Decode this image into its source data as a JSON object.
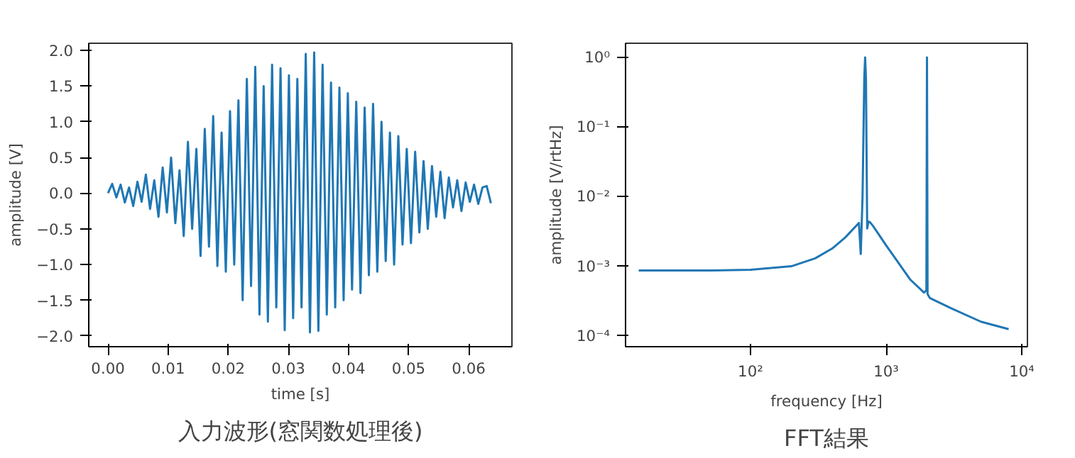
{
  "chart_data": [
    {
      "type": "line",
      "title": "入力波形(窓関数処理後)",
      "xlabel": "time [s]",
      "ylabel": "amplitude [V]",
      "x": [
        0.0,
        0.0007,
        0.0014,
        0.0021,
        0.0028,
        0.0035,
        0.0042,
        0.0049,
        0.0056,
        0.0063,
        0.007,
        0.0077,
        0.0084,
        0.0091,
        0.0098,
        0.0105,
        0.0112,
        0.0119,
        0.0126,
        0.0133,
        0.014,
        0.0147,
        0.0154,
        0.0161,
        0.0168,
        0.0175,
        0.0182,
        0.0189,
        0.0196,
        0.0203,
        0.021,
        0.0217,
        0.0224,
        0.0231,
        0.0238,
        0.0245,
        0.0252,
        0.0259,
        0.0266,
        0.0273,
        0.028,
        0.0287,
        0.0294,
        0.0301,
        0.0308,
        0.0315,
        0.0322,
        0.0329,
        0.0336,
        0.0343,
        0.035,
        0.0357,
        0.0364,
        0.0371,
        0.0378,
        0.0385,
        0.0392,
        0.0399,
        0.0406,
        0.0413,
        0.042,
        0.0427,
        0.0434,
        0.0441,
        0.0448,
        0.0455,
        0.0462,
        0.0469,
        0.0476,
        0.0483,
        0.049,
        0.0497,
        0.0504,
        0.0511,
        0.0518,
        0.0525,
        0.0532,
        0.0539,
        0.0546,
        0.0553,
        0.056,
        0.0567,
        0.0574,
        0.0581,
        0.0588,
        0.0595,
        0.0602,
        0.0609,
        0.0616,
        0.0623,
        0.063,
        0.0637
      ],
      "series": [
        {
          "color": "#1f77b4",
          "values": [
            0.0,
            0.13,
            -0.06,
            0.12,
            -0.13,
            0.08,
            -0.18,
            0.16,
            -0.12,
            0.26,
            -0.22,
            0.18,
            -0.33,
            0.36,
            -0.27,
            0.5,
            -0.42,
            0.32,
            -0.6,
            0.72,
            -0.5,
            0.62,
            -0.88,
            0.9,
            -0.75,
            1.08,
            -1.02,
            0.85,
            -1.1,
            1.15,
            -1.0,
            1.3,
            -1.5,
            1.6,
            -1.3,
            1.77,
            -1.7,
            1.5,
            -1.8,
            1.8,
            -1.6,
            1.75,
            -1.92,
            1.65,
            -1.75,
            1.6,
            -1.6,
            1.95,
            -1.95,
            1.97,
            -1.93,
            1.8,
            -1.7,
            1.55,
            -1.6,
            1.48,
            -1.5,
            1.4,
            -1.35,
            1.28,
            -1.4,
            1.2,
            -1.15,
            1.25,
            -1.1,
            1.0,
            -0.95,
            0.85,
            -1.0,
            0.8,
            -0.72,
            0.62,
            -0.7,
            0.58,
            -0.55,
            0.45,
            -0.5,
            0.38,
            -0.33,
            0.3,
            -0.35,
            0.22,
            -0.2,
            0.18,
            -0.25,
            0.15,
            -0.12,
            0.12,
            -0.15,
            0.08,
            0.1,
            -0.14
          ]
        }
      ],
      "xlim": [
        -0.0032,
        0.0672
      ],
      "ylim": [
        -2.15,
        2.1
      ],
      "xticks": [
        {
          "value": 0,
          "label": "0.00"
        },
        {
          "value": 0.01,
          "label": "0.01"
        },
        {
          "value": 0.02,
          "label": "0.02"
        },
        {
          "value": 0.03,
          "label": "0.03"
        },
        {
          "value": 0.04,
          "label": "0.04"
        },
        {
          "value": 0.05,
          "label": "0.05"
        },
        {
          "value": 0.06,
          "label": "0.06"
        }
      ],
      "yticks": [
        {
          "value": -2,
          "label": "−2.0"
        },
        {
          "value": -1.5,
          "label": "−1.5"
        },
        {
          "value": -1,
          "label": "−1.0"
        },
        {
          "value": -0.5,
          "label": "−0.5"
        },
        {
          "value": 0,
          "label": "0.0"
        },
        {
          "value": 0.5,
          "label": "0.5"
        },
        {
          "value": 1,
          "label": "1.0"
        },
        {
          "value": 1.5,
          "label": "1.5"
        },
        {
          "value": 2,
          "label": "2.0"
        }
      ],
      "grid": false
    },
    {
      "type": "line",
      "title": "FFT結果",
      "xlabel": "frequency [Hz]",
      "ylabel": "amplitude [V/rtHz]",
      "log": "xy",
      "x": [
        15,
        50,
        100,
        200,
        300,
        400,
        500,
        600,
        630,
        650,
        670,
        690,
        700,
        710,
        725,
        740,
        760,
        800,
        1000,
        1500,
        1900,
        1980,
        2000,
        2020,
        2100,
        3000,
        5000,
        8000
      ],
      "series": [
        {
          "color": "#1f77b4",
          "values": [
            0.00087,
            0.00087,
            0.00089,
            0.001,
            0.0013,
            0.0018,
            0.0026,
            0.0038,
            0.0042,
            0.0015,
            0.01,
            0.5,
            1.0,
            0.5,
            0.0035,
            0.0044,
            0.0043,
            0.0038,
            0.002,
            0.00065,
            0.00042,
            0.00045,
            1.0,
            0.0004,
            0.00035,
            0.00025,
            0.00016,
            0.000125
          ]
        }
      ],
      "xlim": [
        12,
        11000
      ],
      "ylim": [
        7e-05,
        1.6
      ],
      "xticks": [
        {
          "value": 100,
          "label": "10²"
        },
        {
          "value": 1000,
          "label": "10³"
        },
        {
          "value": 10000,
          "label": "10⁴"
        }
      ],
      "yticks": [
        {
          "value": 0.0001,
          "label": "10⁻⁴"
        },
        {
          "value": 0.001,
          "label": "10⁻³"
        },
        {
          "value": 0.01,
          "label": "10⁻²"
        },
        {
          "value": 0.1,
          "label": "10⁻¹"
        },
        {
          "value": 1,
          "label": "10⁰"
        }
      ],
      "grid": false
    }
  ]
}
